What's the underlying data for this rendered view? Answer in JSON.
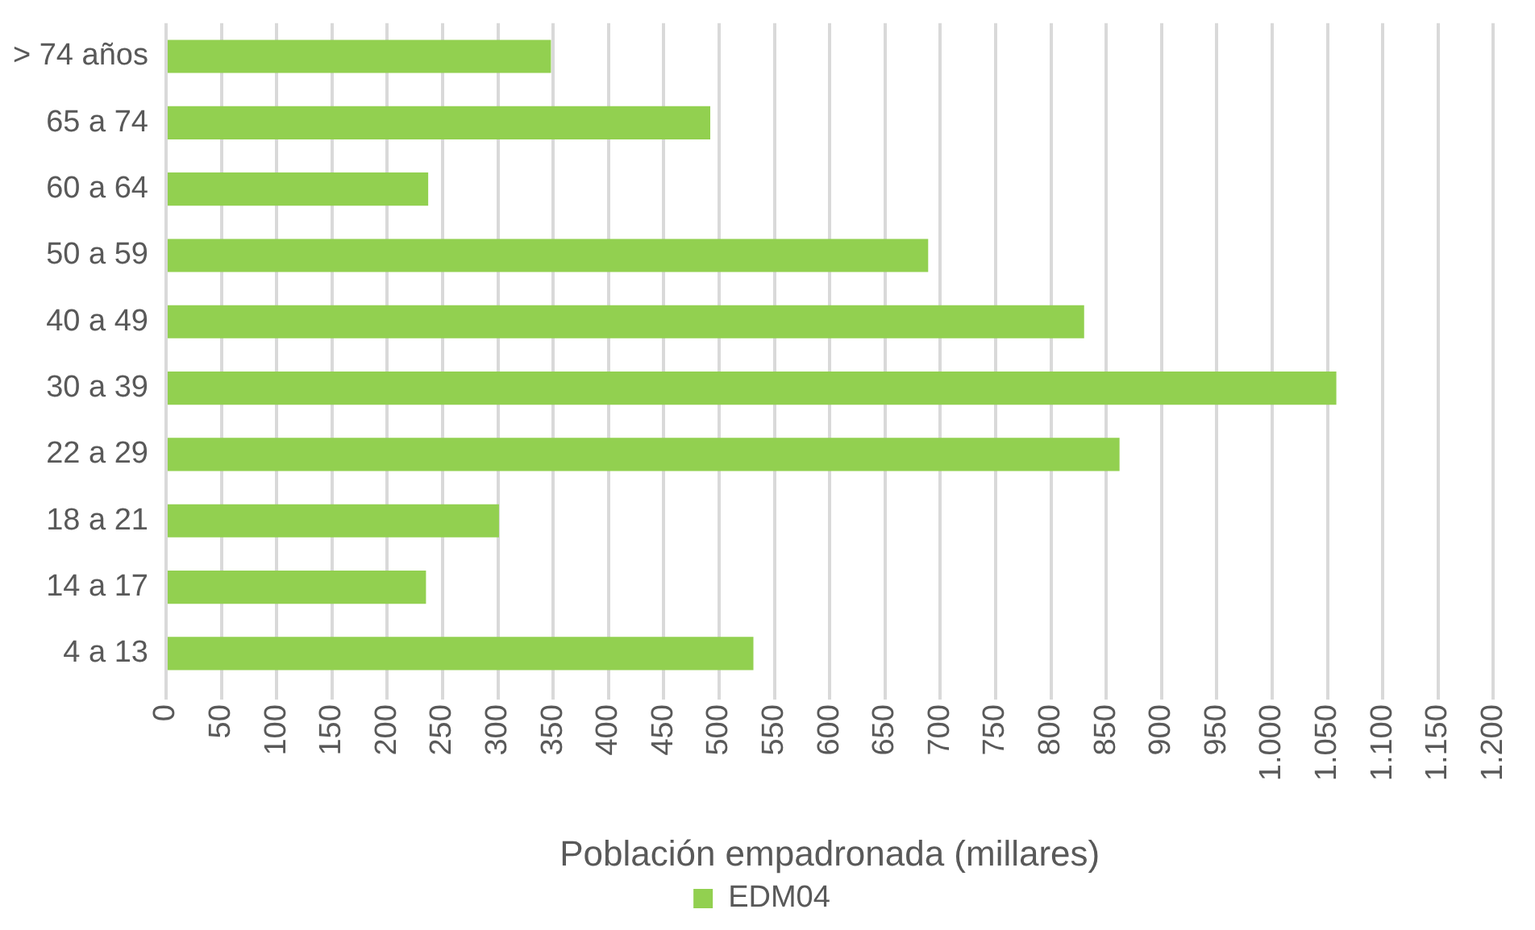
{
  "chart_data": {
    "type": "bar",
    "orientation": "horizontal",
    "xlabel": "Población empadronada (millares)",
    "categories": [
      "> 74 años",
      "65 a 74",
      "60 a 64",
      "50 a 59",
      "40 a 49",
      "30 a 39",
      "22 a 29",
      "18 a 21",
      "14 a 17",
      "4 a 13"
    ],
    "series": [
      {
        "name": "EDM04",
        "color": "#92d050",
        "values": [
          348,
          492,
          237,
          689,
          830,
          1058,
          862,
          301,
          235,
          531
        ]
      }
    ],
    "xlim": [
      0,
      1200
    ],
    "xticks": [
      0,
      50,
      100,
      150,
      200,
      250,
      300,
      350,
      400,
      450,
      500,
      550,
      600,
      650,
      700,
      750,
      800,
      850,
      900,
      950,
      {
        "value": 1000,
        "label": "1.000"
      },
      {
        "value": 1050,
        "label": "1.050"
      },
      {
        "value": 1100,
        "label": "1.100"
      },
      {
        "value": 1150,
        "label": "1.150"
      },
      {
        "value": 1200,
        "label": "1.200"
      }
    ],
    "grid": "x",
    "legend": "bottom"
  }
}
